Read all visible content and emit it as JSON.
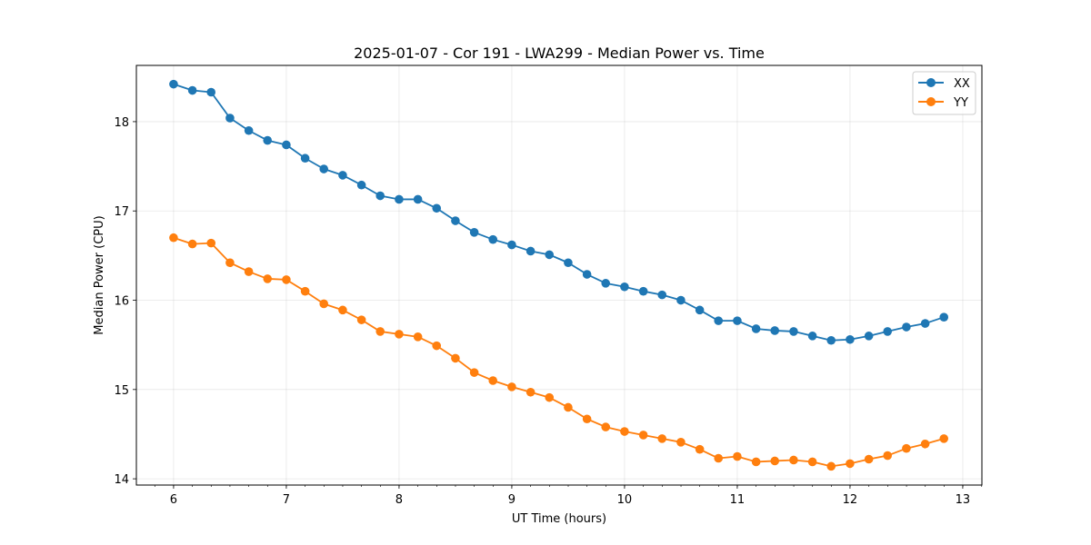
{
  "chart_data": {
    "type": "line",
    "title": "2025-01-07 - Cor 191 - LWA299 - Median Power vs. Time",
    "xlabel": "UT Time (hours)",
    "ylabel": "Median Power (CPU)",
    "xlim": [
      5.67,
      13.17
    ],
    "ylim": [
      13.93,
      18.63
    ],
    "xticks": [
      6,
      7,
      8,
      9,
      10,
      11,
      12,
      13
    ],
    "yticks": [
      14,
      15,
      16,
      17,
      18
    ],
    "x_minor_step": 0.1667,
    "grid": true,
    "legend_position": "top-right",
    "x": [
      6.0,
      6.167,
      6.333,
      6.5,
      6.667,
      6.833,
      7.0,
      7.167,
      7.333,
      7.5,
      7.667,
      7.833,
      8.0,
      8.167,
      8.333,
      8.5,
      8.667,
      8.833,
      9.0,
      9.167,
      9.333,
      9.5,
      9.667,
      9.833,
      10.0,
      10.167,
      10.333,
      10.5,
      10.667,
      10.833,
      11.0,
      11.167,
      11.333,
      11.5,
      11.667,
      11.833,
      12.0,
      12.167,
      12.333,
      12.5,
      12.667,
      12.833
    ],
    "series": [
      {
        "name": "XX",
        "color": "#1f77b4",
        "values": [
          18.42,
          18.35,
          18.33,
          18.04,
          17.9,
          17.79,
          17.74,
          17.59,
          17.47,
          17.4,
          17.29,
          17.17,
          17.13,
          17.13,
          17.03,
          16.89,
          16.76,
          16.68,
          16.62,
          16.55,
          16.51,
          16.42,
          16.29,
          16.19,
          16.15,
          16.1,
          16.06,
          16.0,
          15.89,
          15.77,
          15.77,
          15.68,
          15.66,
          15.65,
          15.6,
          15.55,
          15.56,
          15.6,
          15.65,
          15.7,
          15.74,
          15.81
        ]
      },
      {
        "name": "YY",
        "color": "#ff7f0e",
        "values": [
          16.7,
          16.63,
          16.64,
          16.42,
          16.32,
          16.24,
          16.23,
          16.1,
          15.96,
          15.89,
          15.78,
          15.65,
          15.62,
          15.59,
          15.49,
          15.35,
          15.19,
          15.1,
          15.03,
          14.97,
          14.91,
          14.8,
          14.67,
          14.58,
          14.53,
          14.49,
          14.45,
          14.41,
          14.33,
          14.23,
          14.25,
          14.19,
          14.2,
          14.21,
          14.19,
          14.14,
          14.17,
          14.22,
          14.26,
          14.34,
          14.39,
          14.45
        ]
      }
    ]
  }
}
